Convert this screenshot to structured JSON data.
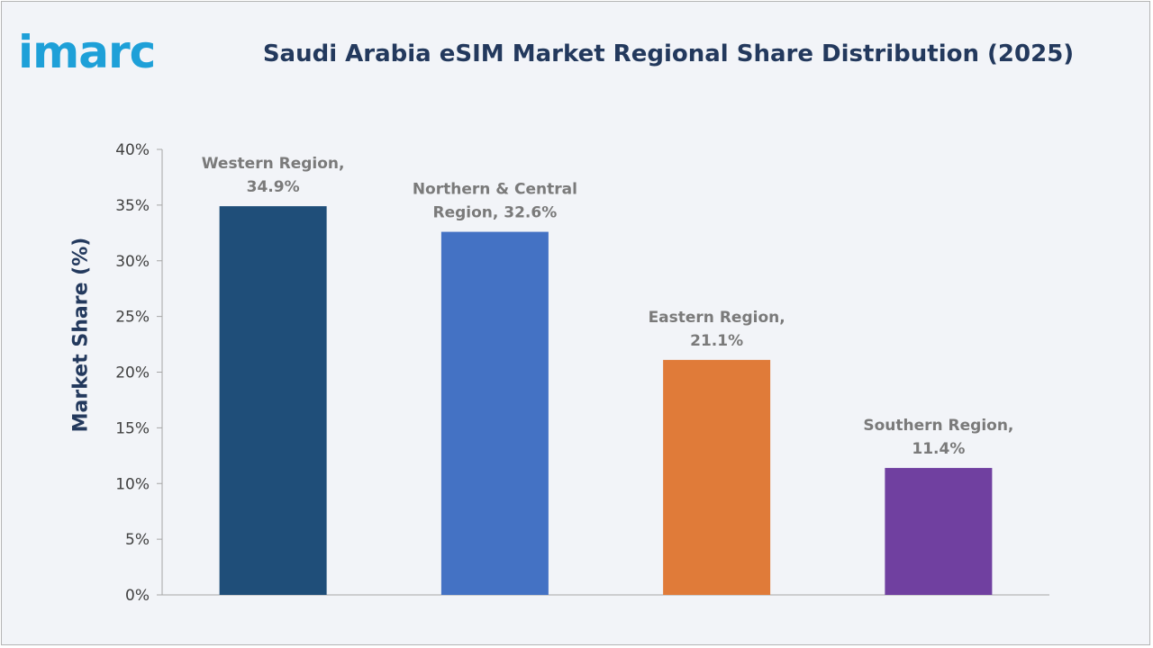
{
  "logo": {
    "text": "imarc"
  },
  "chart_data": {
    "type": "bar",
    "title": "Saudi Arabia eSIM Market Regional Share Distribution (2025)",
    "xlabel": "",
    "ylabel": "Market Share (%)",
    "ylim": [
      0,
      40
    ],
    "yticks": [
      0,
      5,
      10,
      15,
      20,
      25,
      30,
      35,
      40
    ],
    "ytick_labels": [
      "0%",
      "5%",
      "10%",
      "15%",
      "20%",
      "25%",
      "30%",
      "35%",
      "40%"
    ],
    "grid": false,
    "categories": [
      "Western Region",
      "Northern & Central Region",
      "Eastern Region",
      "Southern Region"
    ],
    "values": [
      34.9,
      32.6,
      21.1,
      11.4
    ],
    "data_labels": [
      [
        "Western Region,",
        "34.9%"
      ],
      [
        "Northern & Central",
        "Region, 32.6%"
      ],
      [
        "Eastern Region,",
        "21.1%"
      ],
      [
        "Southern Region,",
        "11.4%"
      ]
    ],
    "colors": [
      "#1f4e79",
      "#4472c4",
      "#e07b39",
      "#7040a0"
    ]
  }
}
